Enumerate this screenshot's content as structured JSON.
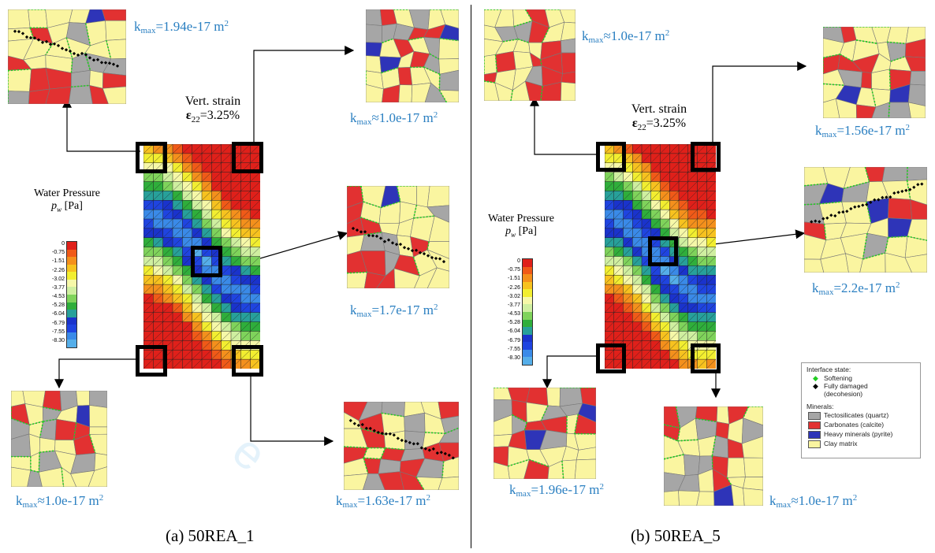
{
  "panels": [
    {
      "id": "a",
      "caption": "(a) 50REA_1",
      "strain": "Vert. strain",
      "strain_val": "=3.25%"
    },
    {
      "id": "b",
      "caption": "(b) 50REA_5",
      "strain": "Vert. strain",
      "strain_val": "=3.25%"
    }
  ],
  "k_labels": {
    "a_tl": {
      "rel": "=",
      "val": "1.94e-17 m"
    },
    "a_tr": {
      "rel": "≈",
      "val": "1.0e-17 m"
    },
    "a_c": {
      "rel": "=",
      "val": "1.7e-17 m"
    },
    "a_bl": {
      "rel": "≈",
      "val": "1.0e-17 m"
    },
    "a_br": {
      "rel": "=",
      "val": "1.63e-17 m"
    },
    "b_tl": {
      "rel": "≈",
      "val": "1.0e-17 m"
    },
    "b_tr": {
      "rel": "=",
      "val": "1.56e-17 m"
    },
    "b_c": {
      "rel": "=",
      "val": "2.2e-17 m"
    },
    "b_bl": {
      "rel": "=",
      "val": "1.96e-17 m"
    },
    "b_br": {
      "rel": "≈",
      "val": "1.0e-17 m"
    }
  },
  "k_prefix": "k",
  "k_sub": "max",
  "k_sup": "2",
  "water_pressure": {
    "title": "Water Pressure",
    "var": "p",
    "var_sub": "w",
    "unit": "[Pa]",
    "ticks": [
      "0",
      "-0.75",
      "-1.51",
      "-2.26",
      "-3.02",
      "-3.77",
      "-4.53",
      "-5.28",
      "-6.04",
      "-6.79",
      "-7.55",
      "-8.30"
    ],
    "colors": [
      "#e0201a",
      "#f05a18",
      "#f4901c",
      "#f7c21f",
      "#f2ee30",
      "#f6f8a8",
      "#cfefa0",
      "#7fd35b",
      "#2fae3b",
      "#27a09a",
      "#1a33cc",
      "#1f44e0",
      "#3a8ae8",
      "#55aee9"
    ]
  },
  "legend": {
    "interface_title": "Interface state:",
    "softening": "Softening",
    "fully_damaged": "Fully damaged",
    "decohesion": "(decohesion)",
    "minerals_title": "Minerals:",
    "minerals": [
      {
        "label": "Tectosilicates (quartz)",
        "color": "#a6a6a6"
      },
      {
        "label": "Carbonates (calcite)",
        "color": "#e23131"
      },
      {
        "label": "Heavy minerals (pyrite)",
        "color": "#2e34b8"
      },
      {
        "label": "Clay matrix",
        "color": "#faf5a0"
      }
    ],
    "soft_color": "#22cc22",
    "damaged_color": "#000000"
  }
}
